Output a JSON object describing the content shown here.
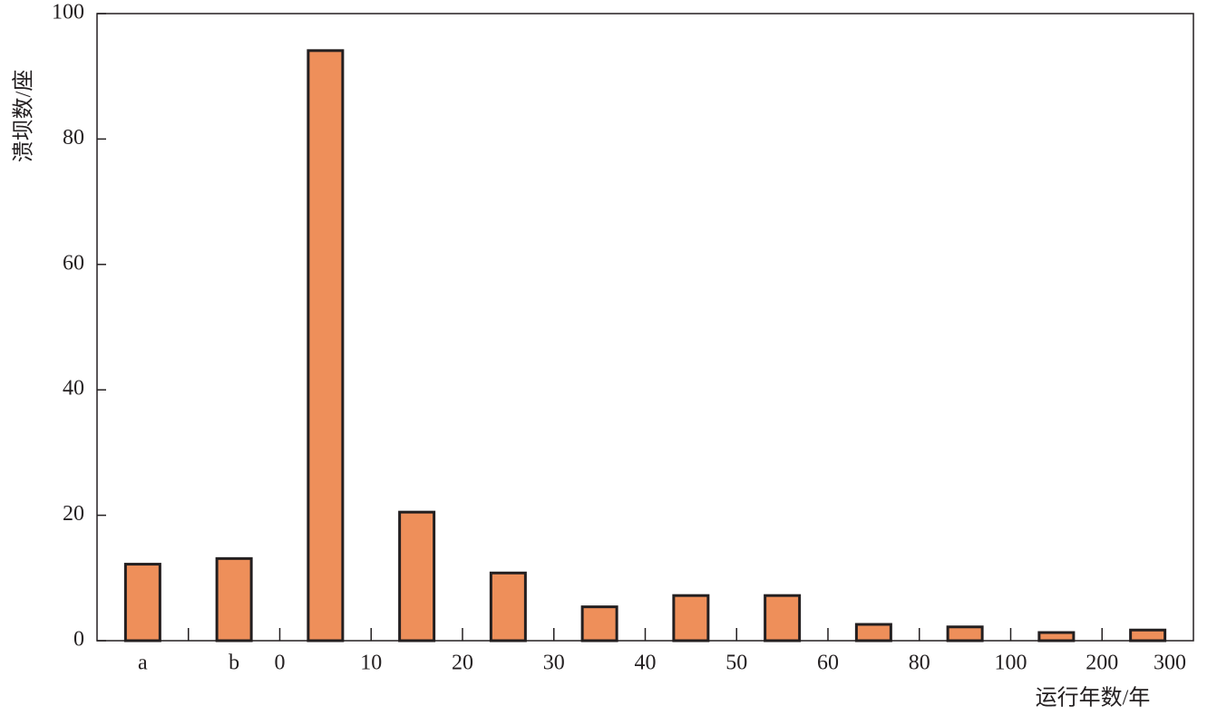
{
  "chart_data": {
    "type": "bar",
    "ylabel": "溃坝数/座",
    "xlabel": "运行年数/年",
    "categories": [
      "a",
      "b",
      null,
      null,
      null,
      null,
      null,
      null,
      null,
      null,
      null,
      null
    ],
    "values": [
      12.2,
      13.1,
      94.1,
      20.5,
      10.8,
      5.4,
      7.2,
      7.2,
      2.6,
      2.2,
      1.3,
      1.7
    ],
    "bins": [
      null,
      null,
      "0",
      "10",
      "20",
      "30",
      "40",
      "50",
      "60",
      "80",
      "100",
      "200",
      "300"
    ],
    "color": "#ee8f5a",
    "ylim": [
      0,
      100
    ],
    "yticks": [
      0,
      20,
      40,
      60,
      80,
      100
    ]
  }
}
